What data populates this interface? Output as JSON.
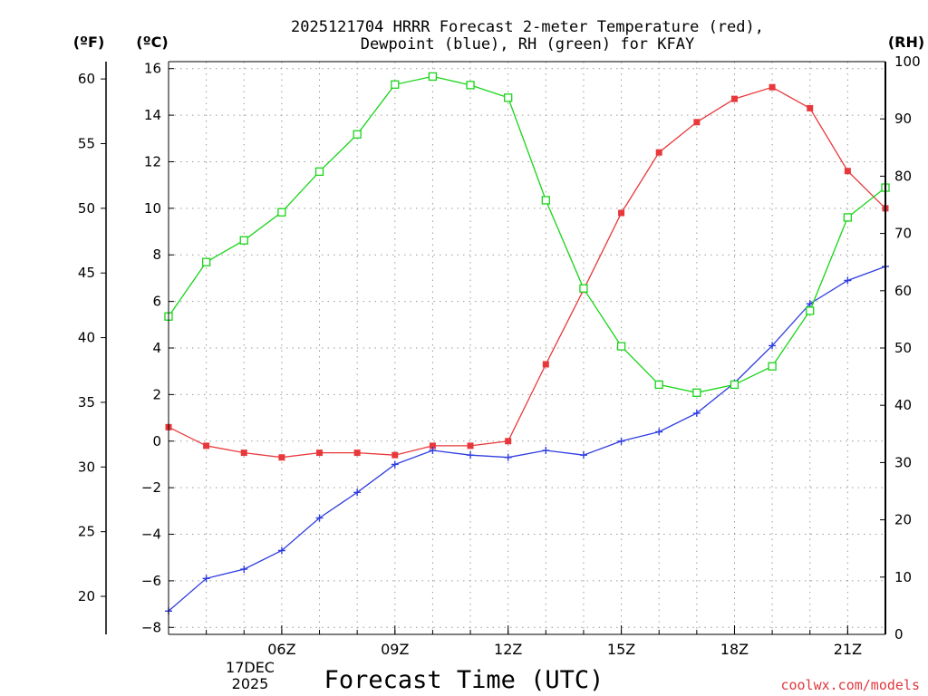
{
  "title": {
    "line1": "2025121704 HRRR Forecast 2-meter Temperature (red),",
    "line2": "Dewpoint (blue), RH (green) for KFAY"
  },
  "units": {
    "fahrenheit": "(ºF)",
    "celsius": "(ºC)",
    "rh": "(RH)"
  },
  "x_axis": {
    "title": "Forecast Time (UTC)",
    "date_line1": "17DEC",
    "date_line2": "2025"
  },
  "credit": "coolwx.com/models",
  "colors": {
    "temperature": "#e8383b",
    "dewpoint": "#2f3de0",
    "rh": "#18d418",
    "grid": "#9a9a9a"
  },
  "chart_data": {
    "type": "line",
    "title": "2025121704 HRRR Forecast 2-meter Temperature (red), Dewpoint (blue), RH (green) for KFAY",
    "xlabel": "Forecast Time (UTC)",
    "x": [
      3,
      4,
      5,
      6,
      7,
      8,
      9,
      10,
      11,
      12,
      13,
      14,
      15,
      16,
      17,
      18,
      19,
      20,
      21,
      22
    ],
    "x_ticks": [
      {
        "hour": 6,
        "label": "06Z"
      },
      {
        "hour": 9,
        "label": "09Z"
      },
      {
        "hour": 12,
        "label": "12Z"
      },
      {
        "hour": 15,
        "label": "15Z"
      },
      {
        "hour": 18,
        "label": "18Z"
      },
      {
        "hour": 21,
        "label": "21Z"
      }
    ],
    "xlim": [
      3,
      22
    ],
    "y_celsius": {
      "label": "(ºC)",
      "ylim": [
        -8.3,
        16.3
      ],
      "ticks": [
        -8,
        -6,
        -4,
        -2,
        0,
        2,
        4,
        6,
        8,
        10,
        12,
        14,
        16
      ]
    },
    "y_fahrenheit": {
      "label": "(ºF)",
      "ticks": [
        20,
        25,
        30,
        35,
        40,
        45,
        50,
        55,
        60
      ]
    },
    "y_rh": {
      "label": "(RH)",
      "ylim": [
        0,
        100
      ],
      "ticks": [
        0,
        10,
        20,
        30,
        40,
        50,
        60,
        70,
        80,
        90,
        100
      ]
    },
    "grid": true,
    "series": [
      {
        "name": "Temperature",
        "axis": "celsius",
        "color": "#e8383b",
        "marker": "filled-square",
        "values": [
          0.6,
          -0.2,
          -0.5,
          -0.7,
          -0.5,
          -0.5,
          -0.6,
          -0.2,
          -0.2,
          0.0,
          3.3,
          6.5,
          9.8,
          12.4,
          13.7,
          14.7,
          15.2,
          14.3,
          11.6,
          10.0
        ]
      },
      {
        "name": "Dewpoint",
        "axis": "celsius",
        "color": "#2f3de0",
        "marker": "plus",
        "values": [
          -7.3,
          -5.9,
          -5.5,
          -4.7,
          -3.3,
          -2.2,
          -1.0,
          -0.4,
          -0.6,
          -0.7,
          -0.4,
          -0.6,
          0.0,
          0.4,
          1.2,
          2.5,
          4.1,
          5.9,
          6.9,
          7.5
        ]
      },
      {
        "name": "RH",
        "axis": "rh",
        "color": "#18d418",
        "marker": "open-square",
        "values": [
          55.5,
          65.0,
          68.8,
          73.7,
          80.8,
          87.3,
          96.0,
          97.4,
          95.9,
          93.7,
          75.8,
          60.4,
          50.3,
          43.6,
          42.2,
          43.6,
          46.8,
          56.5,
          72.8,
          78.0
        ]
      }
    ]
  }
}
